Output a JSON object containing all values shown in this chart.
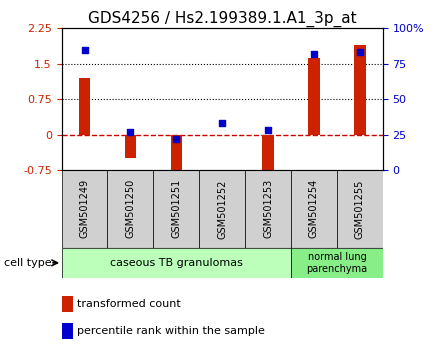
{
  "title": "GDS4256 / Hs2.199389.1.A1_3p_at",
  "samples": [
    "GSM501249",
    "GSM501250",
    "GSM501251",
    "GSM501252",
    "GSM501253",
    "GSM501254",
    "GSM501255"
  ],
  "transformed_counts": [
    1.2,
    -0.5,
    -0.82,
    -0.02,
    -0.9,
    1.62,
    1.9
  ],
  "percentile_ranks": [
    85,
    27,
    22,
    33,
    28,
    82,
    83
  ],
  "ylim_left": [
    -0.75,
    2.25
  ],
  "ylim_right": [
    0,
    100
  ],
  "yticks_left": [
    -0.75,
    0,
    0.75,
    1.5,
    2.25
  ],
  "yticks_right": [
    0,
    25,
    50,
    75,
    100
  ],
  "ytick_labels_left": [
    "-0.75",
    "0",
    "0.75",
    "1.5",
    "2.25"
  ],
  "ytick_labels_right": [
    "0",
    "25",
    "50",
    "75",
    "100%"
  ],
  "hlines": [
    0.75,
    1.5
  ],
  "bar_color": "#cc2200",
  "dot_color": "#0000cc",
  "dot_size": 18,
  "cell_types": [
    {
      "label": "caseous TB granulomas",
      "samples": [
        0,
        1,
        2,
        3,
        4
      ],
      "color": "#bbffbb"
    },
    {
      "label": "normal lung\nparenchyma",
      "samples": [
        5,
        6
      ],
      "color": "#88ee88"
    }
  ],
  "legend_items": [
    {
      "color": "#cc2200",
      "label": "transformed count"
    },
    {
      "color": "#0000cc",
      "label": "percentile rank within the sample"
    }
  ],
  "cell_type_label": "cell type",
  "plot_bg": "#ffffff",
  "zero_line_color": "#cc0000",
  "zero_line_style": "--",
  "dotted_line_color": "#000000",
  "sample_label_fontsize": 7,
  "title_fontsize": 11,
  "bar_width": 0.25
}
